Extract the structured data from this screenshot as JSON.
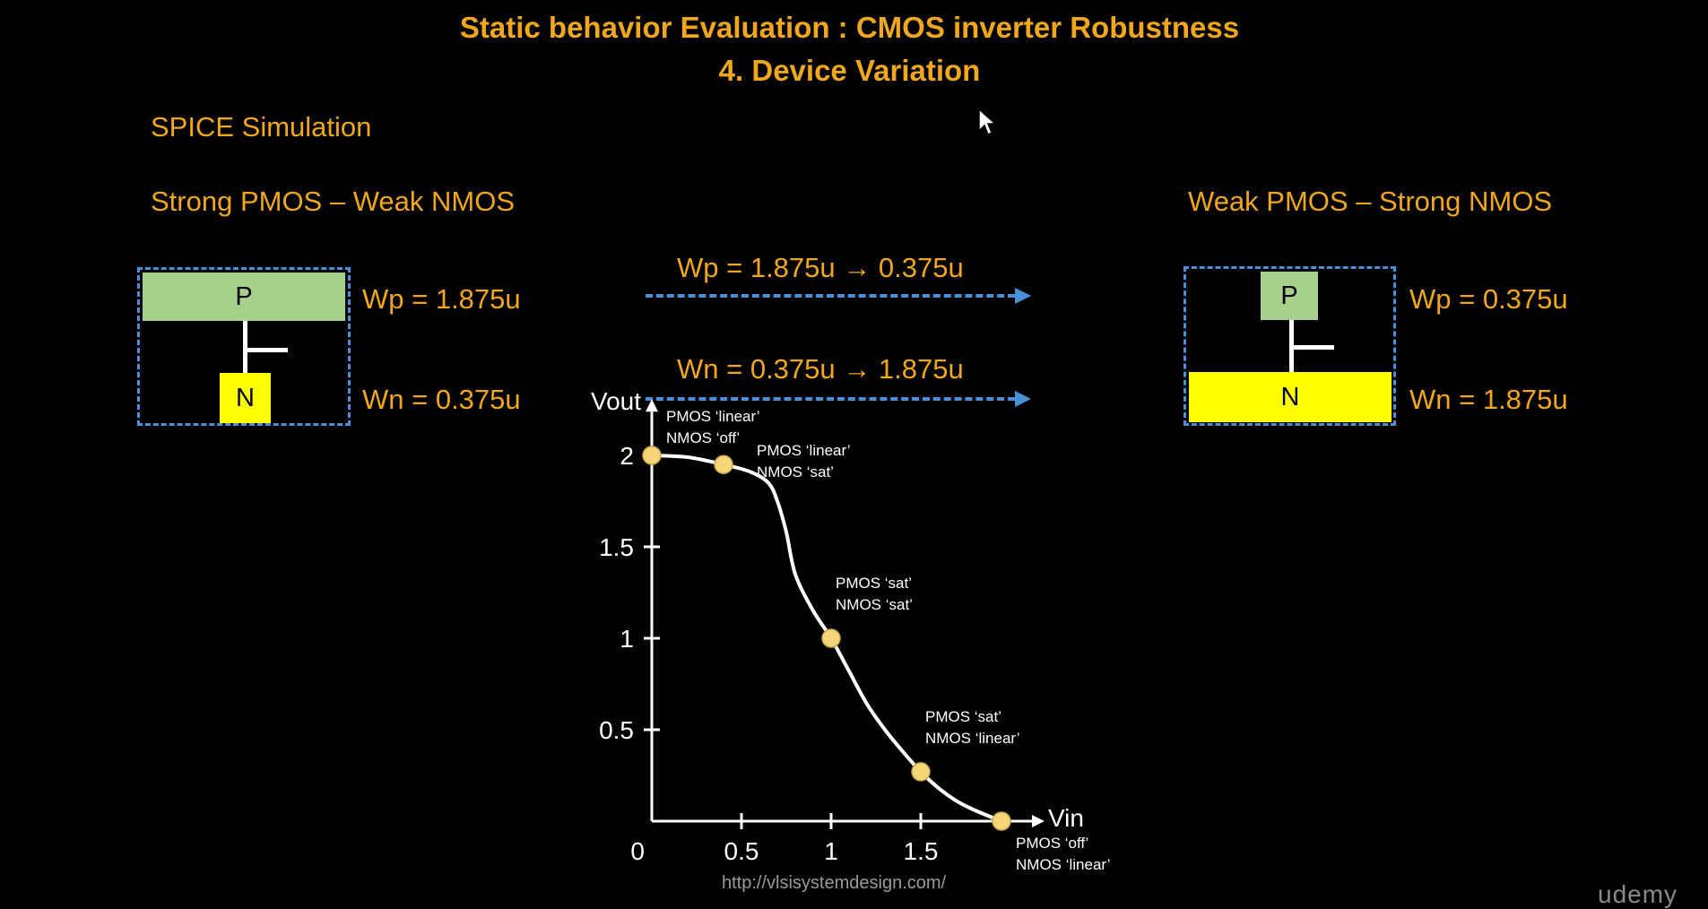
{
  "slide": {
    "title_line1": "Static behavior Evaluation : CMOS inverter Robustness",
    "title_line2": "4. Device Variation",
    "section_label": "SPICE Simulation",
    "left_case_title": "Strong PMOS – Weak NMOS",
    "right_case_title": "Weak PMOS – Strong NMOS",
    "left_p_letter": "P",
    "left_n_letter": "N",
    "right_p_letter": "P",
    "right_n_letter": "N",
    "left_wp": "Wp = 1.875u",
    "left_wn": "Wn = 0.375u",
    "right_wp": "Wp = 0.375u",
    "right_wn": "Wn = 1.875u",
    "wp_change": "Wp = 1.875u  → 0.375u",
    "wn_change": "Wn = 0.375u  → 1.875u",
    "url": "http://vlsisystemdesign.com/",
    "brand": "udemy"
  },
  "chart_data": {
    "type": "line",
    "xlabel": "Vin",
    "ylabel": "Vout",
    "xlim": [
      0,
      2.1
    ],
    "ylim": [
      0,
      2.2
    ],
    "x_ticks": [
      "0",
      "0.5",
      "1",
      "1.5"
    ],
    "x_tick_values": [
      0,
      0.5,
      1,
      1.5
    ],
    "y_ticks": [
      "0.5",
      "1",
      "1.5",
      "2"
    ],
    "y_tick_values": [
      0.5,
      1,
      1.5,
      2
    ],
    "curve": {
      "x": [
        0,
        0.2,
        0.4,
        0.55,
        0.65,
        0.7,
        0.75,
        0.8,
        0.9,
        1.0,
        1.1,
        1.2,
        1.3,
        1.4,
        1.5,
        1.6,
        1.7,
        1.8,
        1.95
      ],
      "y": [
        2.0,
        1.99,
        1.95,
        1.91,
        1.85,
        1.75,
        1.58,
        1.35,
        1.15,
        1.0,
        0.82,
        0.64,
        0.5,
        0.38,
        0.27,
        0.18,
        0.11,
        0.06,
        0.0
      ]
    },
    "markers": [
      {
        "x": 0,
        "y": 2.0,
        "line1": "PMOS ‘linear’",
        "line2": "NMOS ‘off’",
        "pos": "above-right"
      },
      {
        "x": 0.4,
        "y": 1.95,
        "line1": "PMOS ‘linear’",
        "line2": "NMOS ‘sat’",
        "pos": "right-up"
      },
      {
        "x": 1.0,
        "y": 1.0,
        "line1": "PMOS ‘sat’",
        "line2": "NMOS ‘sat’",
        "pos": "above"
      },
      {
        "x": 1.5,
        "y": 0.27,
        "line1": "PMOS ‘sat’",
        "line2": "NMOS ‘linear’",
        "pos": "above"
      },
      {
        "x": 1.95,
        "y": 0.0,
        "line1": "PMOS ‘off’",
        "line2": "NMOS ‘linear’",
        "pos": "below-right"
      }
    ],
    "colors": {
      "curve": "#ffffff",
      "marker": "#f5d77a",
      "axis": "#ffffff",
      "text": "#ffffff"
    }
  }
}
